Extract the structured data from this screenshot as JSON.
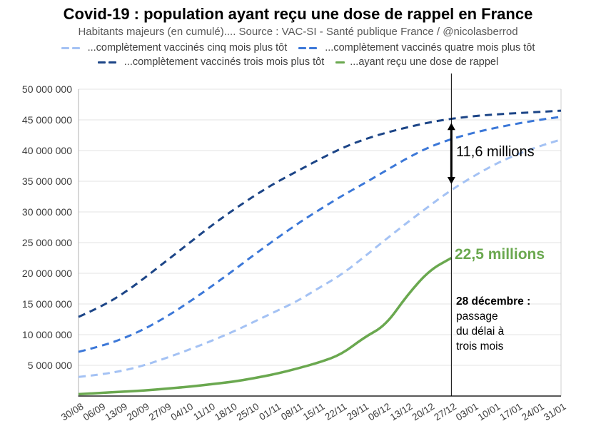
{
  "header": {
    "title": "Covid-19 : population ayant reçu une dose de rappel en France",
    "subtitle": "Habitants majeurs (en cumulé).... Source : VAC-SI - Santé publique France / @nicolasberrod"
  },
  "chart_data": {
    "type": "line",
    "title": "Covid-19 : population ayant reçu une dose de rappel en France",
    "ylabel": "",
    "xlabel": "",
    "grid": true,
    "legend_position": "top",
    "ylim": [
      0,
      50000000
    ],
    "x_labels": [
      "30/08",
      "06/09",
      "13/09",
      "20/09",
      "27/09",
      "04/10",
      "11/10",
      "18/10",
      "25/10",
      "01/11",
      "08/11",
      "15/11",
      "22/11",
      "29/11",
      "06/12",
      "13/12",
      "20/12",
      "27/12",
      "03/01",
      "10/01",
      "17/01",
      "24/01",
      "31/01"
    ],
    "y_ticks": [
      {
        "value": 50000000,
        "label": "50 000 000"
      },
      {
        "value": 45000000,
        "label": "45 000 000"
      },
      {
        "value": 40000000,
        "label": "40 000 000"
      },
      {
        "value": 35000000,
        "label": "35 000 000"
      },
      {
        "value": 30000000,
        "label": "30 000 000"
      },
      {
        "value": 25000000,
        "label": "25 000 000"
      },
      {
        "value": 20000000,
        "label": "20 000 000"
      },
      {
        "value": 15000000,
        "label": "15 000 000"
      },
      {
        "value": 10000000,
        "label": "10 000 000"
      },
      {
        "value": 5000000,
        "label": "5 000 000"
      }
    ],
    "series": [
      {
        "name": "...complètement vaccinés cinq mois plus tôt",
        "color": "#a4c2f4",
        "line_style": "dashed",
        "values_millions": [
          3.1,
          3.5,
          4.1,
          5.0,
          6.2,
          7.5,
          8.9,
          10.4,
          12.1,
          13.8,
          15.5,
          17.7,
          19.8,
          22.6,
          25.5,
          28.3,
          31.0,
          33.6,
          35.8,
          37.8,
          39.4,
          40.7,
          41.8
        ]
      },
      {
        "name": "...complètement vaccinés quatre mois plus tôt",
        "color": "#3c78d8",
        "line_style": "dashed",
        "values_millions": [
          7.2,
          8.1,
          9.3,
          10.9,
          12.9,
          15.2,
          17.7,
          20.3,
          23.0,
          25.6,
          28.1,
          30.4,
          32.6,
          34.6,
          36.7,
          38.8,
          40.6,
          41.9,
          42.9,
          43.7,
          44.4,
          45.0,
          45.5
        ]
      },
      {
        "name": "...complètement vaccinés trois mois plus tôt",
        "color": "#1c4587",
        "line_style": "dashed",
        "values_millions": [
          12.9,
          14.5,
          16.6,
          19.2,
          22.0,
          24.8,
          27.6,
          30.2,
          32.6,
          34.8,
          36.7,
          38.6,
          40.4,
          41.8,
          42.9,
          43.8,
          44.6,
          45.2,
          45.6,
          45.9,
          46.1,
          46.3,
          46.5
        ]
      },
      {
        "name": "...ayant reçu une dose de rappel",
        "color": "#6aa84f",
        "line_style": "solid",
        "values_millions": [
          0.3,
          0.5,
          0.7,
          0.9,
          1.2,
          1.5,
          1.9,
          2.3,
          2.9,
          3.6,
          4.5,
          5.5,
          6.8,
          9.5,
          11.5,
          16.5,
          20.5,
          22.5
        ]
      }
    ],
    "annotations": {
      "vline_at_x_label": "27/12",
      "arrow_label": "11,6 millions",
      "arrow_span_millions": [
        33.6,
        45.2
      ],
      "green_label": "22,5 millions",
      "note_heading": "28 décembre :",
      "note_lines": [
        "passage",
        "du délai à",
        "trois mois"
      ]
    }
  }
}
